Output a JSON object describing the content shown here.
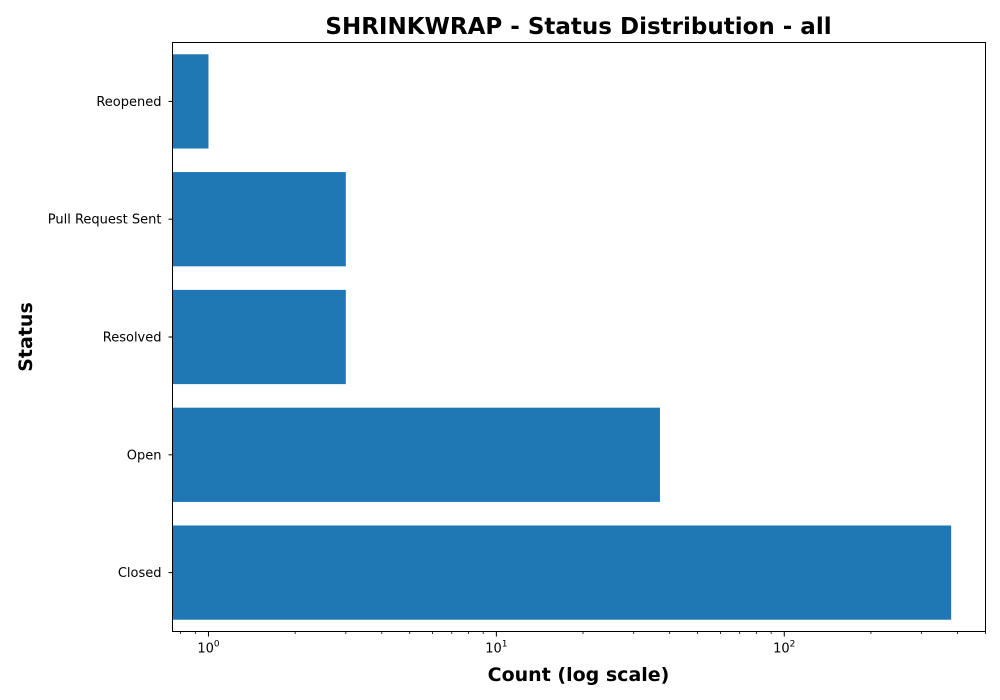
{
  "chart_data": {
    "type": "bar",
    "orientation": "horizontal",
    "title": "SHRINKWRAP - Status Distribution - all",
    "xlabel": "Count (log scale)",
    "ylabel": "Status",
    "x_scale": "log",
    "xlim": [
      0.75,
      500
    ],
    "grid": false,
    "legend": "none",
    "bar_color": "#1f77b4",
    "categories": [
      "Closed",
      "Open",
      "Resolved",
      "Pull Request Sent",
      "Reopened"
    ],
    "values": [
      380,
      37,
      3,
      3,
      1
    ],
    "x_tick_labels": [
      {
        "value": 1,
        "base": "10",
        "exponent": "0"
      },
      {
        "value": 10,
        "base": "10",
        "exponent": "1"
      },
      {
        "value": 100,
        "base": "10",
        "exponent": "2"
      }
    ]
  }
}
